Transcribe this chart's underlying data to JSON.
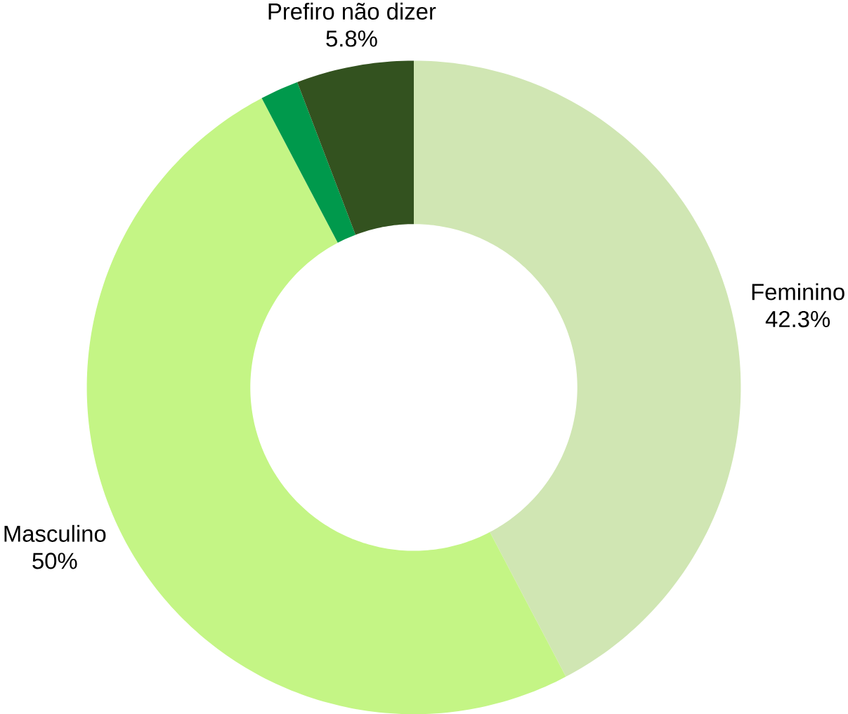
{
  "chart_data": {
    "type": "donut",
    "categories": [
      "Feminino",
      "Masculino",
      null,
      "Prefiro não dizer"
    ],
    "values": [
      42.3,
      50,
      1.9,
      5.8
    ],
    "value_labels": [
      "42.3%",
      "50%",
      null,
      "5.8%"
    ],
    "colors": [
      "#d0e6b3",
      "#c4f585",
      "#00994c",
      "#33521f"
    ]
  }
}
